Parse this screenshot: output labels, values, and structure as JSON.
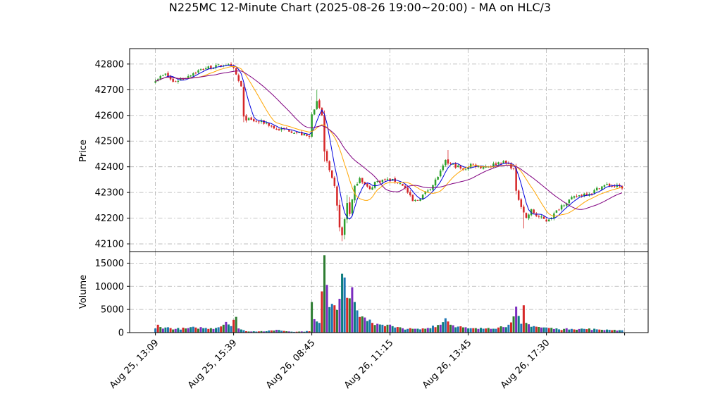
{
  "chart_data": {
    "type": "candlestick",
    "title": "N225MC 12-Minute Chart (2025-08-26 19:00~20:00) - MA on HLC/3",
    "price_panel": {
      "ylabel": "Price",
      "ylim": [
        42070,
        42860
      ],
      "yticks": [
        42100,
        42200,
        42300,
        42400,
        42500,
        42600,
        42700,
        42800
      ],
      "grid": true
    },
    "volume_panel": {
      "ylabel": "Volume",
      "ylim": [
        0,
        17500
      ],
      "yticks": [
        0,
        5000,
        10000,
        15000
      ],
      "grid": true
    },
    "x_axis": {
      "bar_count": 186,
      "ticks": [
        {
          "label": "Aug 25, 13:09",
          "index": 0
        },
        {
          "label": "Aug 25, 15:39",
          "index": 31
        },
        {
          "label": "Aug 26, 08:45",
          "index": 62
        },
        {
          "label": "Aug 26, 11:15",
          "index": 93
        },
        {
          "label": "Aug 26, 13:45",
          "index": 124
        },
        {
          "label": "Aug 26, 17:30",
          "index": 155
        },
        {
          "label": "",
          "index": 186
        }
      ]
    },
    "close_anchors": [
      [
        0,
        42740
      ],
      [
        4,
        42760
      ],
      [
        7,
        42730
      ],
      [
        11,
        42745
      ],
      [
        16,
        42770
      ],
      [
        20,
        42785
      ],
      [
        24,
        42790
      ],
      [
        28,
        42800
      ],
      [
        31,
        42780
      ],
      [
        34,
        42710
      ],
      [
        35,
        42590
      ],
      [
        38,
        42580
      ],
      [
        44,
        42570
      ],
      [
        48,
        42545
      ],
      [
        52,
        42545
      ],
      [
        57,
        42530
      ],
      [
        61,
        42515
      ],
      [
        62,
        42610
      ],
      [
        64,
        42650
      ],
      [
        66,
        42600
      ],
      [
        67,
        42460
      ],
      [
        69,
        42380
      ],
      [
        71,
        42320
      ],
      [
        73,
        42170
      ],
      [
        74,
        42130
      ],
      [
        76,
        42260
      ],
      [
        77,
        42220
      ],
      [
        79,
        42320
      ],
      [
        81,
        42360
      ],
      [
        83,
        42330
      ],
      [
        85,
        42310
      ],
      [
        87,
        42340
      ],
      [
        91,
        42350
      ],
      [
        95,
        42345
      ],
      [
        98,
        42330
      ],
      [
        100,
        42300
      ],
      [
        102,
        42265
      ],
      [
        104,
        42270
      ],
      [
        107,
        42300
      ],
      [
        110,
        42330
      ],
      [
        113,
        42380
      ],
      [
        115,
        42420
      ],
      [
        117,
        42410
      ],
      [
        120,
        42400
      ],
      [
        122,
        42385
      ],
      [
        125,
        42410
      ],
      [
        129,
        42400
      ],
      [
        133,
        42405
      ],
      [
        137,
        42420
      ],
      [
        140,
        42410
      ],
      [
        142,
        42390
      ],
      [
        143,
        42300
      ],
      [
        145,
        42250
      ],
      [
        147,
        42200
      ],
      [
        149,
        42230
      ],
      [
        151,
        42210
      ],
      [
        153,
        42200
      ],
      [
        155,
        42190
      ],
      [
        158,
        42215
      ],
      [
        161,
        42250
      ],
      [
        164,
        42270
      ],
      [
        167,
        42285
      ],
      [
        170,
        42295
      ],
      [
        173,
        42300
      ],
      [
        176,
        42320
      ],
      [
        179,
        42330
      ],
      [
        182,
        42325
      ],
      [
        185,
        42320
      ]
    ],
    "volume_anchors": [
      [
        0,
        900
      ],
      [
        1,
        1700
      ],
      [
        2,
        1200
      ],
      [
        4,
        1100
      ],
      [
        8,
        800
      ],
      [
        12,
        900
      ],
      [
        16,
        1100
      ],
      [
        20,
        1000
      ],
      [
        24,
        1000
      ],
      [
        27,
        1700
      ],
      [
        28,
        2300
      ],
      [
        30,
        1400
      ],
      [
        32,
        3400
      ],
      [
        33,
        900
      ],
      [
        36,
        300
      ],
      [
        44,
        300
      ],
      [
        48,
        600
      ],
      [
        52,
        300
      ],
      [
        56,
        200
      ],
      [
        61,
        300
      ],
      [
        62,
        6600
      ],
      [
        63,
        2900
      ],
      [
        64,
        2400
      ],
      [
        65,
        2100
      ],
      [
        66,
        8900
      ],
      [
        67,
        16700
      ],
      [
        68,
        10300
      ],
      [
        69,
        5500
      ],
      [
        70,
        6200
      ],
      [
        71,
        5900
      ],
      [
        72,
        4900
      ],
      [
        73,
        7300
      ],
      [
        74,
        12700
      ],
      [
        75,
        11900
      ],
      [
        76,
        7500
      ],
      [
        77,
        7400
      ],
      [
        78,
        9800
      ],
      [
        79,
        6600
      ],
      [
        80,
        4800
      ],
      [
        82,
        3500
      ],
      [
        84,
        2500
      ],
      [
        86,
        2100
      ],
      [
        88,
        1900
      ],
      [
        90,
        1700
      ],
      [
        92,
        1700
      ],
      [
        95,
        1100
      ],
      [
        100,
        800
      ],
      [
        105,
        700
      ],
      [
        108,
        1000
      ],
      [
        110,
        1500
      ],
      [
        113,
        1700
      ],
      [
        115,
        3100
      ],
      [
        117,
        1700
      ],
      [
        120,
        1300
      ],
      [
        124,
        900
      ],
      [
        128,
        800
      ],
      [
        132,
        1000
      ],
      [
        136,
        1100
      ],
      [
        140,
        1700
      ],
      [
        141,
        2200
      ],
      [
        142,
        3500
      ],
      [
        143,
        5600
      ],
      [
        144,
        3600
      ],
      [
        145,
        1900
      ],
      [
        146,
        5900
      ],
      [
        147,
        2100
      ],
      [
        148,
        1800
      ],
      [
        150,
        1400
      ],
      [
        153,
        1100
      ],
      [
        156,
        1000
      ],
      [
        160,
        700
      ],
      [
        165,
        800
      ],
      [
        170,
        800
      ],
      [
        175,
        700
      ],
      [
        180,
        600
      ],
      [
        185,
        500
      ]
    ],
    "series": [
      {
        "type": "candles",
        "up_color": "#2ca02c",
        "down_color": "#d62728"
      },
      {
        "type": "ma",
        "period": 5,
        "color": "#0000dd"
      },
      {
        "type": "ma",
        "period": 13,
        "color": "#ffa500"
      },
      {
        "type": "ma",
        "period": 25,
        "color": "#800080"
      }
    ],
    "volume_colors": [
      "#1f77b4",
      "#d62728",
      "#2e7d32",
      "#7b2cbf",
      "#0d7d7d"
    ]
  }
}
